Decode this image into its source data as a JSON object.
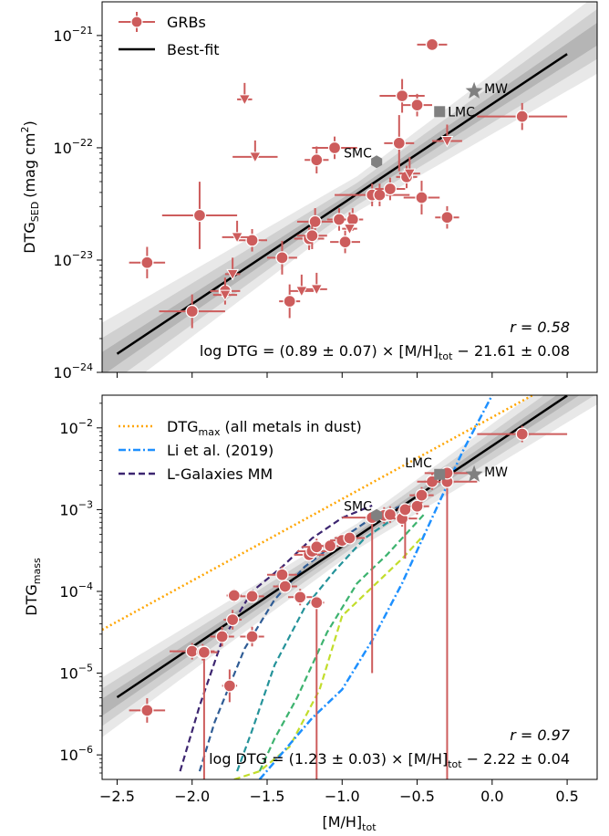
{
  "chart_data": [
    {
      "type": "scatter",
      "yscale": "log",
      "ylabel": "DTG",
      "ylabel_sub": "SED",
      "ylabel_unit": "(mag cm",
      "ylabel_unit_sup": "2",
      "ylabel_unit_end": ")",
      "xlim": [
        -2.6,
        0.7
      ],
      "ylim_log10": [
        -24,
        -20.7
      ],
      "ytick_exps": [
        -24,
        -23,
        -22,
        -21
      ],
      "xticks": [
        -2.5,
        -2.0,
        -1.5,
        -1.0,
        -0.5,
        0.0,
        0.5
      ],
      "legend": {
        "placement": "top-left",
        "points": "GRBs",
        "line": "Best-fit"
      },
      "stat_r": "r = 0.58",
      "fit_text": "log DTG = (0.89 ± 0.07) × [M/H]",
      "fit_text_sub": "tot",
      "fit_text_end": " − 21.61 ± 0.08",
      "fit": {
        "slope": 0.89,
        "intercept": -21.61
      },
      "points": [
        {
          "x": -2.3,
          "y": 9.5e-24,
          "xerr": 0.12,
          "yerr": 0.14
        },
        {
          "x": -2.0,
          "y": 3.5e-24,
          "xerr": 0.22,
          "yerr": 0.15
        },
        {
          "x": -1.95,
          "y": 2.5e-23,
          "xerr": 0.25,
          "yerr": 0.3
        },
        {
          "x": -1.78,
          "y": 5.3e-24,
          "xerr": 0.1,
          "yerr": 0.12
        },
        {
          "x": -1.6,
          "y": 1.5e-23,
          "xerr": 0.1,
          "yerr": 0.1
        },
        {
          "x": -1.4,
          "y": 1.05e-23,
          "xerr": 0.1,
          "yerr": 0.15
        },
        {
          "x": -1.35,
          "y": 4.3e-24,
          "xerr": 0.07,
          "yerr": 0.15
        },
        {
          "x": -1.22,
          "y": 1.55e-23,
          "xerr": 0.1,
          "yerr": 0.1
        },
        {
          "x": -1.18,
          "y": 2.2e-23,
          "xerr": 0.12,
          "yerr": 0.12
        },
        {
          "x": -1.17,
          "y": 7.8e-23,
          "xerr": 0.08,
          "yerr": 0.12
        },
        {
          "x": -1.2,
          "y": 1.65e-23,
          "xerr": 0.1,
          "yerr": 0.12
        },
        {
          "x": -1.02,
          "y": 2.3e-23,
          "xerr": 0.08,
          "yerr": 0.1
        },
        {
          "x": -1.05,
          "y": 1e-22,
          "xerr": 0.15,
          "yerr": 0.1
        },
        {
          "x": -0.98,
          "y": 1.45e-23,
          "xerr": 0.1,
          "yerr": 0.1
        },
        {
          "x": -0.93,
          "y": 2.3e-23,
          "xerr": 0.07,
          "yerr": 0.1
        },
        {
          "x": -0.8,
          "y": 3.8e-23,
          "xerr": 0.25,
          "yerr": 0.1
        },
        {
          "x": -0.75,
          "y": 3.8e-23,
          "xerr": 0.05,
          "yerr": 0.1
        },
        {
          "x": -0.68,
          "y": 4.3e-23,
          "xerr": 0.1,
          "yerr": 0.1
        },
        {
          "x": -0.62,
          "y": 1.1e-22,
          "xerr": 0.1,
          "yerr": 0.25
        },
        {
          "x": -0.6,
          "y": 2.9e-22,
          "xerr": 0.15,
          "yerr": 0.15
        },
        {
          "x": -0.57,
          "y": 5.5e-23,
          "xerr": 0.07,
          "yerr": 0.1
        },
        {
          "x": -0.5,
          "y": 2.4e-22,
          "xerr": 0.1,
          "yerr": 0.1
        },
        {
          "x": -0.47,
          "y": 3.6e-23,
          "xerr": 0.12,
          "yerr": 0.15
        },
        {
          "x": -0.4,
          "y": 8.3e-22,
          "xerr": 0.1,
          "yerr": 0.05
        },
        {
          "x": -0.3,
          "y": 2.4e-23,
          "xerr": 0.08,
          "yerr": 0.1
        },
        {
          "x": 0.2,
          "y": 1.9e-22,
          "xerr": 0.3,
          "yerr": 0.12
        }
      ],
      "limits": [
        {
          "x": -1.7,
          "y": 1.6e-23,
          "xerr": 0.1
        },
        {
          "x": -1.73,
          "y": 7.5e-24,
          "xerr": 0.05
        },
        {
          "x": -1.78,
          "y": 4.9e-24,
          "xerr": 0.08
        },
        {
          "x": -1.65,
          "y": 2.7e-22,
          "xerr": 0.05
        },
        {
          "x": -1.58,
          "y": 8.3e-23,
          "xerr": 0.15
        },
        {
          "x": -1.27,
          "y": 5.3e-24,
          "xerr": 0.08
        },
        {
          "x": -1.17,
          "y": 5.5e-24,
          "xerr": 0.07
        },
        {
          "x": -0.95,
          "y": 1.9e-23,
          "xerr": 0.05
        },
        {
          "x": -0.55,
          "y": 5.9e-23,
          "xerr": 0.07
        },
        {
          "x": -0.3,
          "y": 1.15e-22,
          "xerr": 0.1
        }
      ],
      "references": [
        {
          "name": "MW",
          "x": -0.12,
          "y": 3.2e-22,
          "marker": "star"
        },
        {
          "name": "LMC",
          "x": -0.35,
          "y": 2.1e-22,
          "marker": "square"
        },
        {
          "name": "SMC",
          "x": -0.77,
          "y": 7.5e-23,
          "marker": "hexagon"
        }
      ]
    },
    {
      "type": "scatter",
      "yscale": "log",
      "ylabel": "DTG",
      "ylabel_sub": "mass",
      "xlabel": "[M/H]",
      "xlabel_sub": "tot",
      "xlim": [
        -2.6,
        0.7
      ],
      "ylim_log10": [
        -6.3,
        -1.6
      ],
      "ytick_exps": [
        -6,
        -5,
        -4,
        -3,
        -2
      ],
      "xticks": [
        -2.5,
        -2.0,
        -1.5,
        -1.0,
        -0.5,
        0.0,
        0.5
      ],
      "legend": {
        "placement": "top-left",
        "dtgmax": "DTG",
        "dtgmax_sub": "max",
        "dtgmax_end": " (all metals in dust)",
        "li": "Li et al. (2019)",
        "lgal": "L-Galaxies MM"
      },
      "stat_r": "r = 0.97",
      "fit_text": "log DTG = (1.23 ± 0.03) × [M/H]",
      "fit_text_sub": "tot",
      "fit_text_end": " − 2.22 ± 0.04",
      "fit": {
        "slope": 1.23,
        "intercept": -2.22
      },
      "dtg_max": {
        "slope": 1.0,
        "intercept": -1.87
      },
      "li_2019": {
        "x": [
          -1.55,
          -1.2,
          -1.0,
          -0.8,
          -0.6,
          -0.4,
          -0.2,
          0.0
        ],
        "y_log10": [
          -6.3,
          -5.55,
          -5.2,
          -4.6,
          -3.9,
          -3.1,
          -2.3,
          -1.6
        ]
      },
      "colors": {
        "points": "#cd5c5c",
        "dtgmax": "#ffa500",
        "li": "#1e90ff",
        "lgal": "#3c2570",
        "ref": "#808080"
      },
      "lgal_curves": [
        {
          "color": "#3c2570",
          "x": [
            -2.08,
            -1.95,
            -1.8,
            -1.6,
            -1.4,
            -1.2,
            -1.0,
            -0.8
          ],
          "y_log10": [
            -6.2,
            -5.4,
            -4.6,
            -4.0,
            -3.7,
            -3.35,
            -3.1,
            -2.95
          ]
        },
        {
          "color": "#2f5c95",
          "x": [
            -1.95,
            -1.85,
            -1.65,
            -1.45,
            -1.25,
            -1.0,
            -0.8,
            -0.6
          ],
          "y_log10": [
            -6.2,
            -5.6,
            -4.7,
            -4.1,
            -3.7,
            -3.35,
            -3.1,
            -2.95
          ]
        },
        {
          "color": "#25939a",
          "x": [
            -1.7,
            -1.6,
            -1.45,
            -1.25,
            -1.05,
            -0.85,
            -0.65,
            -0.5
          ],
          "y_log10": [
            -6.2,
            -5.7,
            -4.9,
            -4.2,
            -3.75,
            -3.35,
            -3.1,
            -2.95
          ]
        },
        {
          "color": "#3db36f",
          "x": [
            -1.55,
            -1.45,
            -1.3,
            -1.1,
            -0.9,
            -0.7,
            -0.55,
            -0.45
          ],
          "y_log10": [
            -6.2,
            -5.8,
            -5.3,
            -4.5,
            -3.9,
            -3.55,
            -3.25,
            -3.05
          ]
        },
        {
          "color": "#c2dd2b",
          "x": [
            -1.72,
            -1.55,
            -1.35,
            -1.15,
            -1.0,
            -0.8,
            -0.6,
            -0.45
          ],
          "y_log10": [
            -6.3,
            -6.2,
            -5.9,
            -5.2,
            -4.3,
            -3.95,
            -3.6,
            -3.3
          ]
        }
      ],
      "points": [
        {
          "x": -2.3,
          "y": 3.5e-06,
          "xerr": 0.12,
          "yerr": 0.15
        },
        {
          "x": -2.0,
          "y": 1.85e-05,
          "xerr": 0.15,
          "yerr": 0.1
        },
        {
          "x": -1.93,
          "y": 1.8e-05,
          "xerr": 0.1,
          "yerr": 0.1
        },
        {
          "x": -1.92,
          "y": 1.8e-05,
          "xerr": 0.02,
          "ydown_log10": -6.4
        },
        {
          "x": -1.8,
          "y": 2.8e-05,
          "xerr": 0.08,
          "yerr": 0.12
        },
        {
          "x": -1.73,
          "y": 4.5e-05,
          "xerr": 0.06,
          "yerr": 0.12
        },
        {
          "x": -1.72,
          "y": 8.9e-05,
          "xerr": 0.05,
          "yerr": 0.08
        },
        {
          "x": -1.75,
          "y": 7e-06,
          "xerr": 0.05,
          "yerr": 0.2
        },
        {
          "x": -1.6,
          "y": 8.7e-05,
          "xerr": 0.08,
          "yerr": 0.08
        },
        {
          "x": -1.6,
          "y": 2.8e-05,
          "xerr": 0.08,
          "yerr": 0.12
        },
        {
          "x": -1.4,
          "y": 0.00016,
          "xerr": 0.1,
          "yerr": 0.1
        },
        {
          "x": -1.38,
          "y": 0.000115,
          "xerr": 0.08,
          "yerr": 0.08
        },
        {
          "x": -1.28,
          "y": 8.5e-05,
          "xerr": 0.08,
          "yerr": 0.1
        },
        {
          "x": -1.22,
          "y": 0.00028,
          "xerr": 0.1,
          "yerr": 0.08
        },
        {
          "x": -1.2,
          "y": 0.00031,
          "xerr": 0.1,
          "yerr": 0.08
        },
        {
          "x": -1.17,
          "y": 0.00035,
          "xerr": 0.1,
          "yerr": 0.1
        },
        {
          "x": -1.17,
          "y": 7.3e-05,
          "xerr": 0.05,
          "ydown_log10": -6.4
        },
        {
          "x": -1.08,
          "y": 0.00036,
          "xerr": 0.08,
          "yerr": 0.08
        },
        {
          "x": -1.0,
          "y": 0.00042,
          "xerr": 0.08,
          "yerr": 0.08
        },
        {
          "x": -0.95,
          "y": 0.00045,
          "xerr": 0.1,
          "yerr": 0.08
        },
        {
          "x": -0.8,
          "y": 0.0008,
          "xerr": 0.2,
          "ydown_log10": -5.0
        },
        {
          "x": -0.72,
          "y": 0.00085,
          "xerr": 0.1,
          "yerr": 0.1
        },
        {
          "x": -0.68,
          "y": 0.00087,
          "xerr": 0.08,
          "yerr": 0.1
        },
        {
          "x": -0.6,
          "y": 0.00078,
          "xerr": 0.1,
          "yerr": 0.1
        },
        {
          "x": -0.58,
          "y": 0.001,
          "xerr": 0.05,
          "ydown_log10": -3.6
        },
        {
          "x": -0.5,
          "y": 0.0011,
          "xerr": 0.08,
          "yerr": 0.1
        },
        {
          "x": -0.47,
          "y": 0.0015,
          "xerr": 0.08,
          "yerr": 0.1
        },
        {
          "x": -0.4,
          "y": 0.0022,
          "xerr": 0.05,
          "yerr": 0.1
        },
        {
          "x": -0.3,
          "y": 0.0022,
          "xerr": 0.2,
          "ydown_log10": -6.4
        },
        {
          "x": -0.3,
          "y": 0.0028,
          "xerr": 0.15,
          "yerr": 0.08
        },
        {
          "x": 0.2,
          "y": 0.0084,
          "xerr": 0.3,
          "yerr": 0.1
        }
      ],
      "references": [
        {
          "name": "MW",
          "x": -0.12,
          "y": 0.0027,
          "marker": "star"
        },
        {
          "name": "LMC",
          "x": -0.35,
          "y": 0.0027,
          "marker": "square"
        },
        {
          "name": "SMC",
          "x": -0.77,
          "y": 0.00085,
          "marker": "hexagon"
        }
      ]
    }
  ]
}
